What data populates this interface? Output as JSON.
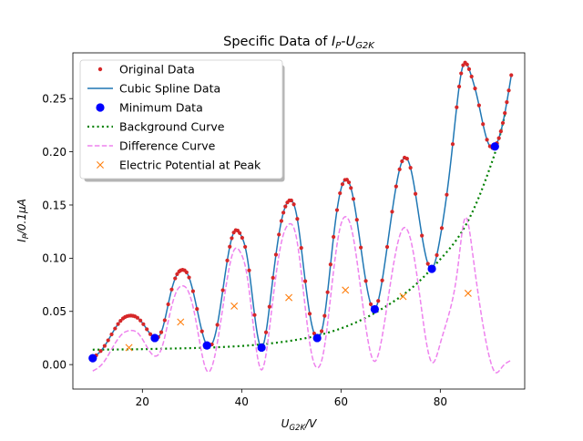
{
  "chart_data": {
    "type": "line",
    "title_main": "Specific Data of ",
    "title_var": "I",
    "title_var_sub": "P",
    "title_dash": "-",
    "title_var2": "U",
    "title_var2_sub": "G2K",
    "xlabel_var": "U",
    "xlabel_sub": "G2K",
    "xlabel_unit": "/V",
    "ylabel_var": "I",
    "ylabel_sub": "P",
    "ylabel_unit": "/0.1μA",
    "xlim": [
      6,
      97
    ],
    "ylim": [
      -0.023,
      0.293
    ],
    "xticks": [
      20,
      40,
      60,
      80
    ],
    "yticks": [
      0.0,
      0.05,
      0.1,
      0.15,
      0.2,
      0.25
    ],
    "ytick_labels": [
      "0.00",
      "0.05",
      "0.10",
      "0.15",
      "0.20",
      "0.25"
    ],
    "legend_position": "upper-left",
    "legend": [
      {
        "label": "Original Data",
        "kind": "dot",
        "color": "#d62728"
      },
      {
        "label": "Cubic Spline Data",
        "kind": "line",
        "color": "#1f77b4"
      },
      {
        "label": "Minimum Data",
        "kind": "bigdot",
        "color": "#0000ff"
      },
      {
        "label": "Background Curve",
        "kind": "dotted",
        "color": "#008000"
      },
      {
        "label": "Difference Curve",
        "kind": "dashed",
        "color": "#ee82ee"
      },
      {
        "label": "Electric Potential at Peak",
        "kind": "x",
        "color": "#ff7f0e"
      }
    ],
    "spline_knots": [
      [
        10.0,
        0.006
      ],
      [
        12.0,
        0.015
      ],
      [
        14.0,
        0.03
      ],
      [
        16.0,
        0.043
      ],
      [
        17.5,
        0.046
      ],
      [
        19.0,
        0.044
      ],
      [
        20.5,
        0.036
      ],
      [
        22.5,
        0.025
      ],
      [
        24.0,
        0.033
      ],
      [
        25.5,
        0.063
      ],
      [
        27.0,
        0.085
      ],
      [
        28.0,
        0.089
      ],
      [
        29.0,
        0.086
      ],
      [
        30.5,
        0.063
      ],
      [
        33.0,
        0.018
      ],
      [
        35.0,
        0.035
      ],
      [
        37.0,
        0.095
      ],
      [
        38.5,
        0.125
      ],
      [
        39.8,
        0.122
      ],
      [
        41.0,
        0.104
      ],
      [
        44.0,
        0.016
      ],
      [
        46.0,
        0.07
      ],
      [
        48.0,
        0.135
      ],
      [
        49.5,
        0.154
      ],
      [
        51.0,
        0.142
      ],
      [
        52.5,
        0.09
      ],
      [
        54.0,
        0.04
      ],
      [
        55.2,
        0.025
      ],
      [
        56.5,
        0.04
      ],
      [
        58.5,
        0.12
      ],
      [
        60.0,
        0.165
      ],
      [
        61.0,
        0.174
      ],
      [
        62.0,
        0.166
      ],
      [
        64.0,
        0.11
      ],
      [
        66.8,
        0.052
      ],
      [
        68.5,
        0.085
      ],
      [
        70.5,
        0.15
      ],
      [
        72.5,
        0.193
      ],
      [
        74.0,
        0.185
      ],
      [
        76.0,
        0.13
      ],
      [
        78.3,
        0.09
      ],
      [
        80.0,
        0.12
      ],
      [
        82.0,
        0.186
      ],
      [
        83.5,
        0.25
      ],
      [
        84.5,
        0.28
      ],
      [
        86.0,
        0.275
      ],
      [
        87.5,
        0.25
      ],
      [
        89.5,
        0.21
      ],
      [
        91.0,
        0.205
      ],
      [
        92.5,
        0.225
      ],
      [
        94.3,
        0.272
      ]
    ],
    "original_data_x": [
      10.0,
      10.7,
      11.6,
      12.4,
      13.1,
      13.8,
      14.5,
      15.1,
      15.6,
      16.1,
      16.5,
      16.9,
      17.3,
      17.7,
      18.1,
      18.5,
      19.0,
      19.6,
      20.2,
      20.9,
      21.6,
      22.5,
      23.2,
      23.8,
      24.5,
      25.2,
      25.9,
      26.6,
      27.0,
      27.4,
      27.7,
      28.1,
      28.5,
      28.9,
      29.4,
      30.2,
      31.0,
      32.0,
      33.0,
      34.0,
      35.1,
      36.2,
      37.1,
      37.6,
      38.0,
      38.4,
      38.8,
      39.2,
      39.6,
      40.1,
      40.7,
      41.5,
      42.6,
      44.0,
      44.9,
      45.6,
      46.3,
      46.9,
      47.5,
      48.0,
      48.4,
      48.8,
      49.2,
      49.6,
      50.0,
      50.5,
      51.2,
      52.0,
      52.8,
      53.7,
      54.6,
      55.2,
      56.1,
      56.7,
      57.3,
      57.9,
      58.5,
      59.2,
      59.8,
      60.3,
      60.8,
      61.2,
      61.6,
      62.0,
      62.5,
      63.2,
      64.0,
      65.0,
      66.0,
      66.8,
      67.5,
      68.3,
      69.3,
      70.3,
      71.1,
      71.8,
      72.3,
      72.8,
      73.3,
      74.0,
      75.0,
      76.3,
      77.5,
      78.3,
      79.3,
      80.3,
      81.3,
      82.5,
      83.3,
      83.8,
      84.2,
      84.6,
      85.0,
      85.4,
      85.8,
      86.3,
      87.0,
      87.8,
      88.6,
      89.4,
      90.0,
      90.5,
      91.0,
      91.4,
      91.8,
      92.2,
      92.6,
      93.0,
      93.4,
      93.8,
      94.3
    ],
    "minimum_data": [
      [
        10.0,
        0.006
      ],
      [
        22.5,
        0.025
      ],
      [
        33.0,
        0.018
      ],
      [
        44.0,
        0.016
      ],
      [
        55.2,
        0.025
      ],
      [
        66.8,
        0.052
      ],
      [
        78.3,
        0.09
      ],
      [
        91.0,
        0.205
      ]
    ],
    "background_curve": [
      [
        10.0,
        0.014
      ],
      [
        15.0,
        0.0142
      ],
      [
        20.0,
        0.0145
      ],
      [
        25.0,
        0.015
      ],
      [
        30.0,
        0.0155
      ],
      [
        35.0,
        0.0163
      ],
      [
        40.0,
        0.0175
      ],
      [
        45.0,
        0.0195
      ],
      [
        50.0,
        0.0225
      ],
      [
        55.0,
        0.027
      ],
      [
        60.0,
        0.034
      ],
      [
        65.0,
        0.044
      ],
      [
        70.0,
        0.0575
      ],
      [
        75.0,
        0.075
      ],
      [
        80.0,
        0.099
      ],
      [
        85.0,
        0.13
      ],
      [
        88.0,
        0.16
      ],
      [
        90.0,
        0.185
      ],
      [
        92.0,
        0.215
      ],
      [
        93.0,
        0.235
      ]
    ],
    "difference_curve": [
      [
        10.0,
        -0.006
      ],
      [
        12.0,
        0.001
      ],
      [
        14.0,
        0.016
      ],
      [
        16.0,
        0.029
      ],
      [
        17.5,
        0.032
      ],
      [
        19.0,
        0.03
      ],
      [
        20.5,
        0.02
      ],
      [
        22.5,
        0.008
      ],
      [
        24.0,
        0.017
      ],
      [
        25.5,
        0.047
      ],
      [
        27.0,
        0.07
      ],
      [
        28.0,
        0.074
      ],
      [
        29.0,
        0.071
      ],
      [
        30.5,
        0.048
      ],
      [
        33.0,
        -0.006
      ],
      [
        35.0,
        0.018
      ],
      [
        37.0,
        0.078
      ],
      [
        38.5,
        0.108
      ],
      [
        39.8,
        0.105
      ],
      [
        41.0,
        0.086
      ],
      [
        44.0,
        -0.005
      ],
      [
        46.0,
        0.05
      ],
      [
        48.0,
        0.115
      ],
      [
        49.5,
        0.132
      ],
      [
        51.0,
        0.12
      ],
      [
        52.5,
        0.066
      ],
      [
        54.0,
        0.012
      ],
      [
        55.2,
        -0.003
      ],
      [
        56.5,
        0.012
      ],
      [
        58.5,
        0.088
      ],
      [
        60.0,
        0.132
      ],
      [
        61.0,
        0.139
      ],
      [
        62.0,
        0.13
      ],
      [
        64.0,
        0.07
      ],
      [
        66.8,
        0.003
      ],
      [
        68.5,
        0.032
      ],
      [
        70.5,
        0.092
      ],
      [
        72.5,
        0.128
      ],
      [
        74.0,
        0.118
      ],
      [
        76.0,
        0.06
      ],
      [
        78.3,
        0.002
      ],
      [
        80.0,
        0.02
      ],
      [
        82.0,
        0.052
      ],
      [
        83.5,
        0.09
      ],
      [
        85.0,
        0.138
      ],
      [
        86.5,
        0.105
      ],
      [
        88.5,
        0.04
      ],
      [
        90.0,
        0.005
      ],
      [
        91.0,
        -0.007
      ],
      [
        92.5,
        -0.002
      ],
      [
        94.3,
        0.004
      ]
    ],
    "peak_potentials": [
      [
        17.3,
        0.016
      ],
      [
        27.7,
        0.04
      ],
      [
        38.5,
        0.055
      ],
      [
        49.5,
        0.063
      ],
      [
        60.9,
        0.07
      ],
      [
        72.5,
        0.064
      ],
      [
        85.6,
        0.067
      ]
    ]
  }
}
